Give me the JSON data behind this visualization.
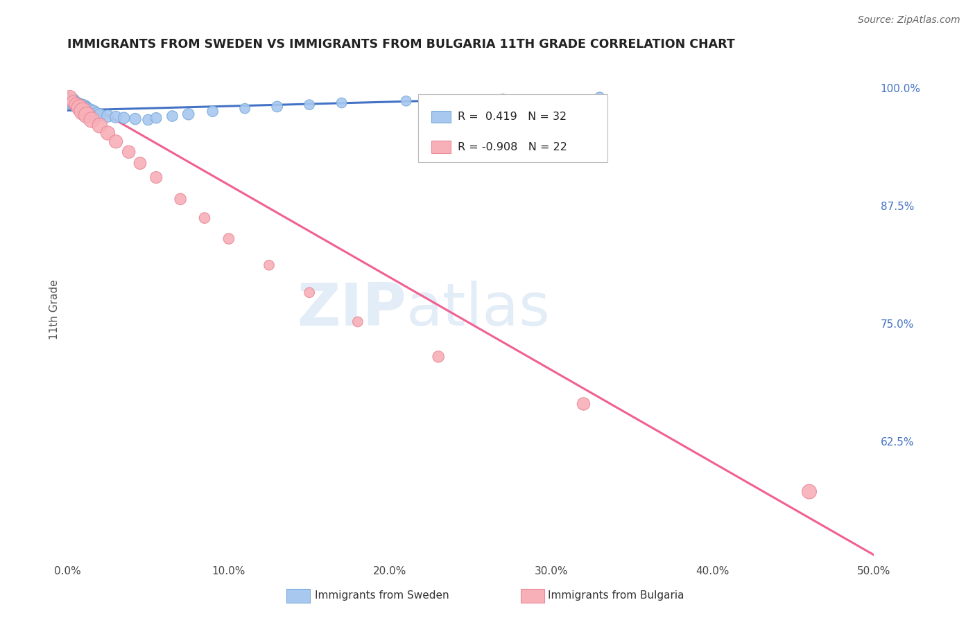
{
  "title": "IMMIGRANTS FROM SWEDEN VS IMMIGRANTS FROM BULGARIA 11TH GRADE CORRELATION CHART",
  "source": "Source: ZipAtlas.com",
  "ylabel": "11th Grade",
  "xlim": [
    0.0,
    50.0
  ],
  "ylim": [
    0.5,
    1.03
  ],
  "yticks_right": [
    0.625,
    0.75,
    0.875,
    1.0
  ],
  "ytick_right_labels": [
    "62.5%",
    "75.0%",
    "87.5%",
    "100.0%"
  ],
  "xticks": [
    0.0,
    10.0,
    20.0,
    30.0,
    40.0,
    50.0
  ],
  "xtick_labels": [
    "0.0%",
    "10.0%",
    "20.0%",
    "30.0%",
    "40.0%",
    "50.0%"
  ],
  "sweden_R": 0.419,
  "sweden_N": 32,
  "bulgaria_R": -0.908,
  "bulgaria_N": 22,
  "sweden_color": "#a8c8f0",
  "sweden_edge": "#7aaad8",
  "bulgaria_color": "#f8b0b8",
  "bulgaria_edge": "#e88898",
  "trend_sweden_color": "#4472c4",
  "trend_bulgaria_color": "#f06090",
  "legend_R_sweden": "R =  0.419",
  "legend_N_sweden": "N = 32",
  "legend_R_bulgaria": "R = -0.908",
  "legend_N_bulgaria": "N = 22",
  "legend_label_sweden": "Immigrants from Sweden",
  "legend_label_bulgaria": "Immigrants from Bulgaria",
  "watermark_zip": "ZIP",
  "watermark_atlas": "atlas",
  "background_color": "#ffffff",
  "grid_color": "#dddddd",
  "sweden_x": [
    0.1,
    0.2,
    0.3,
    0.4,
    0.5,
    0.6,
    0.7,
    0.8,
    0.9,
    1.0,
    1.1,
    1.2,
    1.4,
    1.6,
    1.8,
    2.0,
    2.5,
    3.0,
    3.5,
    4.2,
    5.0,
    5.5,
    6.5,
    7.5,
    9.0,
    11.0,
    13.0,
    15.0,
    17.0,
    21.0,
    27.0,
    33.0
  ],
  "sweden_y": [
    0.985,
    0.988,
    0.986,
    0.984,
    0.982,
    0.983,
    0.981,
    0.98,
    0.979,
    0.978,
    0.977,
    0.976,
    0.975,
    0.974,
    0.972,
    0.971,
    0.97,
    0.969,
    0.968,
    0.967,
    0.966,
    0.968,
    0.97,
    0.972,
    0.975,
    0.978,
    0.98,
    0.982,
    0.984,
    0.986,
    0.988,
    0.99
  ],
  "sweden_sizes": [
    40,
    35,
    50,
    45,
    40,
    38,
    42,
    55,
    60,
    65,
    55,
    50,
    48,
    42,
    38,
    35,
    32,
    30,
    28,
    28,
    25,
    25,
    25,
    28,
    25,
    22,
    25,
    22,
    22,
    22,
    22,
    22
  ],
  "bulgaria_x": [
    0.15,
    0.35,
    0.55,
    0.75,
    0.95,
    1.2,
    1.5,
    2.0,
    2.5,
    3.0,
    3.8,
    4.5,
    5.5,
    7.0,
    8.5,
    10.0,
    12.5,
    15.0,
    18.0,
    23.0,
    32.0,
    46.0
  ],
  "bulgaria_y": [
    0.99,
    0.985,
    0.982,
    0.979,
    0.975,
    0.971,
    0.966,
    0.96,
    0.952,
    0.943,
    0.932,
    0.92,
    0.905,
    0.882,
    0.862,
    0.84,
    0.812,
    0.783,
    0.752,
    0.715,
    0.665,
    0.572
  ],
  "bulgaria_sizes": [
    40,
    35,
    42,
    55,
    65,
    58,
    52,
    48,
    42,
    38,
    35,
    32,
    30,
    28,
    25,
    25,
    22,
    22,
    22,
    28,
    35,
    45
  ],
  "trend_sweden_x0": 0.0,
  "trend_sweden_x1": 33.0,
  "trend_sweden_y0": 0.976,
  "trend_sweden_y1": 0.991,
  "trend_bulgaria_x0": 0.0,
  "trend_bulgaria_x1": 50.0,
  "trend_bulgaria_y0": 0.995,
  "trend_bulgaria_y1": 0.505
}
